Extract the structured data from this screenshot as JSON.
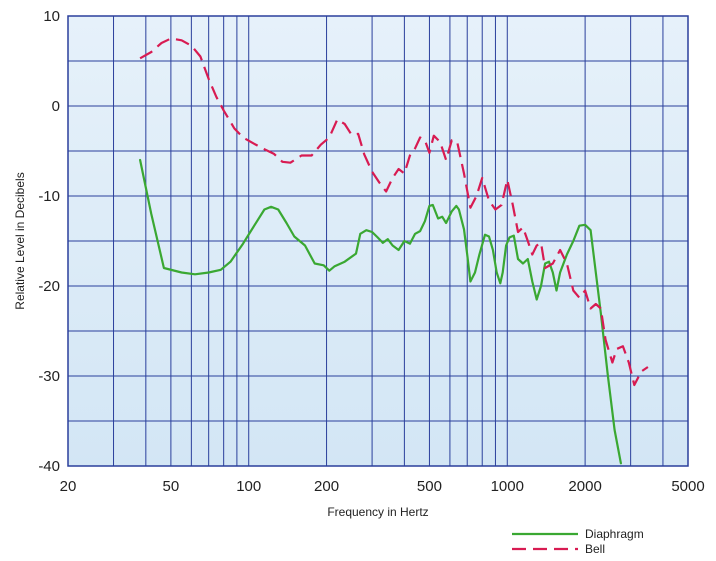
{
  "chart_data": {
    "type": "line",
    "title": "",
    "xlabel": "Frequency in Hertz",
    "ylabel": "Relative Level in Decibels",
    "x_scale": "log",
    "xlim": [
      20,
      5000
    ],
    "ylim": [
      -40,
      10
    ],
    "x_ticks": [
      {
        "value": 20,
        "label": "20"
      },
      {
        "value": 50,
        "label": "50"
      },
      {
        "value": 100,
        "label": "100"
      },
      {
        "value": 200,
        "label": "200"
      },
      {
        "value": 500,
        "label": "500"
      },
      {
        "value": 1000,
        "label": "1000"
      },
      {
        "value": 2000,
        "label": "2000"
      },
      {
        "value": 5000,
        "label": "5000"
      }
    ],
    "y_ticks": [
      {
        "value": 10,
        "label": "10"
      },
      {
        "value": 0,
        "label": "0"
      },
      {
        "value": -10,
        "label": "-10"
      },
      {
        "value": -20,
        "label": "-20"
      },
      {
        "value": -30,
        "label": "-30"
      },
      {
        "value": -40,
        "label": "-40"
      }
    ],
    "grid": true,
    "legend_position": "bottom-right",
    "series": [
      {
        "name": "Diaphragm",
        "color": "#3aa832",
        "style": "solid",
        "points": [
          [
            38,
            -6
          ],
          [
            42,
            -12
          ],
          [
            47,
            -18
          ],
          [
            55,
            -18.5
          ],
          [
            62,
            -18.7
          ],
          [
            70,
            -18.5
          ],
          [
            78,
            -18.2
          ],
          [
            85,
            -17.3
          ],
          [
            95,
            -15.3
          ],
          [
            105,
            -13.3
          ],
          [
            115,
            -11.5
          ],
          [
            122,
            -11.2
          ],
          [
            130,
            -11.5
          ],
          [
            140,
            -13
          ],
          [
            150,
            -14.5
          ],
          [
            165,
            -15.5
          ],
          [
            180,
            -17.5
          ],
          [
            195,
            -17.7
          ],
          [
            205,
            -18.3
          ],
          [
            215,
            -17.8
          ],
          [
            235,
            -17.3
          ],
          [
            260,
            -16.4
          ],
          [
            270,
            -14.2
          ],
          [
            285,
            -13.8
          ],
          [
            300,
            -14
          ],
          [
            315,
            -14.6
          ],
          [
            330,
            -15.2
          ],
          [
            345,
            -14.8
          ],
          [
            360,
            -15.5
          ],
          [
            380,
            -16
          ],
          [
            400,
            -15
          ],
          [
            420,
            -15.3
          ],
          [
            440,
            -14.2
          ],
          [
            460,
            -13.9
          ],
          [
            480,
            -12.8
          ],
          [
            500,
            -11.1
          ],
          [
            515,
            -11
          ],
          [
            540,
            -12.5
          ],
          [
            560,
            -12.3
          ],
          [
            580,
            -13
          ],
          [
            610,
            -11.7
          ],
          [
            635,
            -11.1
          ],
          [
            650,
            -11.5
          ],
          [
            680,
            -13.7
          ],
          [
            700,
            -16.5
          ],
          [
            720,
            -19.5
          ],
          [
            750,
            -18.5
          ],
          [
            780,
            -16.5
          ],
          [
            820,
            -14.3
          ],
          [
            850,
            -14.5
          ],
          [
            880,
            -16
          ],
          [
            910,
            -18.5
          ],
          [
            940,
            -19.7
          ],
          [
            960,
            -18.5
          ],
          [
            990,
            -15.5
          ],
          [
            1020,
            -14.6
          ],
          [
            1060,
            -14.4
          ],
          [
            1100,
            -17
          ],
          [
            1150,
            -17.5
          ],
          [
            1200,
            -17
          ],
          [
            1250,
            -19.5
          ],
          [
            1300,
            -21.5
          ],
          [
            1350,
            -20
          ],
          [
            1400,
            -17.5
          ],
          [
            1450,
            -17.3
          ],
          [
            1500,
            -18.5
          ],
          [
            1550,
            -20.5
          ],
          [
            1600,
            -18.5
          ],
          [
            1700,
            -16.5
          ],
          [
            1800,
            -15
          ],
          [
            1900,
            -13.3
          ],
          [
            2000,
            -13.2
          ],
          [
            2100,
            -13.8
          ],
          [
            2200,
            -18.5
          ],
          [
            2300,
            -23
          ],
          [
            2450,
            -30
          ],
          [
            2600,
            -36
          ],
          [
            2750,
            -39.7
          ]
        ]
      },
      {
        "name": "Bell",
        "color": "#d81b52",
        "style": "dashed",
        "points": [
          [
            38,
            5.3
          ],
          [
            42,
            6
          ],
          [
            46,
            7
          ],
          [
            50,
            7.5
          ],
          [
            55,
            7.3
          ],
          [
            60,
            6.7
          ],
          [
            65,
            5.5
          ],
          [
            70,
            3
          ],
          [
            75,
            1
          ],
          [
            80,
            -0.5
          ],
          [
            88,
            -2.5
          ],
          [
            95,
            -3.5
          ],
          [
            105,
            -4.2
          ],
          [
            115,
            -4.8
          ],
          [
            125,
            -5.3
          ],
          [
            135,
            -6.2
          ],
          [
            145,
            -6.3
          ],
          [
            160,
            -5.5
          ],
          [
            175,
            -5.5
          ],
          [
            190,
            -4.3
          ],
          [
            205,
            -3.5
          ],
          [
            220,
            -1.5
          ],
          [
            235,
            -2
          ],
          [
            250,
            -3.2
          ],
          [
            265,
            -3.1
          ],
          [
            280,
            -5.4
          ],
          [
            300,
            -7.3
          ],
          [
            320,
            -8.5
          ],
          [
            340,
            -9.5
          ],
          [
            360,
            -8
          ],
          [
            380,
            -7
          ],
          [
            400,
            -7.5
          ],
          [
            420,
            -5.5
          ],
          [
            440,
            -4.7
          ],
          [
            460,
            -3.5
          ],
          [
            480,
            -3.8
          ],
          [
            500,
            -5.2
          ],
          [
            520,
            -3.3
          ],
          [
            550,
            -4
          ],
          [
            580,
            -6
          ],
          [
            610,
            -3.8
          ],
          [
            640,
            -4
          ],
          [
            680,
            -7.5
          ],
          [
            720,
            -11.3
          ],
          [
            760,
            -10
          ],
          [
            800,
            -8
          ],
          [
            850,
            -10.5
          ],
          [
            900,
            -11.5
          ],
          [
            950,
            -11
          ],
          [
            1000,
            -8.2
          ],
          [
            1050,
            -11
          ],
          [
            1100,
            -14
          ],
          [
            1150,
            -13.5
          ],
          [
            1200,
            -15
          ],
          [
            1250,
            -16.5
          ],
          [
            1300,
            -15.5
          ],
          [
            1350,
            -15.2
          ],
          [
            1400,
            -18
          ],
          [
            1500,
            -17.5
          ],
          [
            1600,
            -16
          ],
          [
            1700,
            -17.5
          ],
          [
            1800,
            -20.5
          ],
          [
            1900,
            -21.3
          ],
          [
            2000,
            -20.5
          ],
          [
            2100,
            -22.5
          ],
          [
            2200,
            -22
          ],
          [
            2300,
            -22.5
          ],
          [
            2400,
            -26
          ],
          [
            2550,
            -28.5
          ],
          [
            2650,
            -27
          ],
          [
            2800,
            -26.7
          ],
          [
            2950,
            -28.5
          ],
          [
            3100,
            -31
          ],
          [
            3300,
            -29.5
          ],
          [
            3500,
            -29
          ]
        ]
      }
    ]
  }
}
